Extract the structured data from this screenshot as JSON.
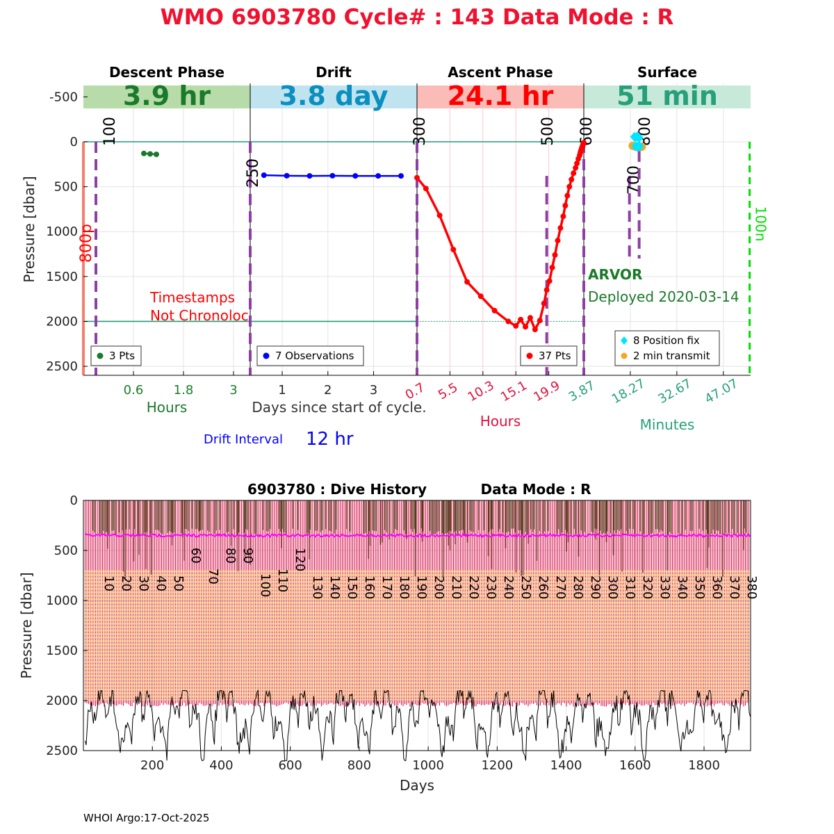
{
  "title": "WMO 6903780   Cycle# : 143   Data Mode : R",
  "footer": "WHOI Argo:17-Oct-2025",
  "colors": {
    "title": "#f0112f",
    "descent": "#1a7a2a",
    "drift": "#0000ff",
    "driftBand": "#0b8fbf",
    "ascent": "#ff0000",
    "surface": "#26a07a",
    "purple": "#8e3fa5",
    "orange": "#f5a623",
    "cyan": "#00e5ff",
    "salmon": "#f08070",
    "green": "#00dd00",
    "pink": "#e0004f",
    "magenta": "#ff00ff"
  },
  "chart_data": [
    {
      "type": "line",
      "name": "cycle-profile",
      "ylabel": "Pressure [dbar]",
      "ylim": [
        -650,
        2600
      ],
      "yticks": [
        -500,
        0,
        500,
        1000,
        1500,
        2000,
        2500
      ],
      "grid": true,
      "surface_line_dbar": 0,
      "park_line_dbar": 2000,
      "phases": [
        {
          "key": "descent",
          "title": "Descent Phase",
          "duration": "3.9 hr",
          "axis_label": "Hours",
          "xlim": [
            -0.6,
            3.4
          ],
          "ticks": [
            0.6,
            1.8,
            3
          ],
          "tick_labels": [
            "0.6",
            "1.8",
            "3"
          ],
          "legend": "3 Pts",
          "series": [
            {
              "x": [
                0.85,
                1.0,
                1.15
              ],
              "y": [
                130,
                135,
                140
              ]
            }
          ],
          "markers": [
            {
              "label": "100",
              "x": -0.3
            }
          ],
          "annotations": [
            "800p",
            "Timestamps",
            "Not Chronoloc"
          ]
        },
        {
          "key": "drift",
          "title": "Drift",
          "duration": "3.8 day",
          "axis_label": "Days since start of cycle.",
          "xlim": [
            0.3,
            3.95
          ],
          "ticks": [
            1,
            2,
            3
          ],
          "tick_labels": [
            "1",
            "2",
            "3"
          ],
          "legend": "7 Observations",
          "series": [
            {
              "x": [
                0.6,
                1.1,
                1.6,
                2.1,
                2.6,
                3.1,
                3.6
              ],
              "y": [
                372,
                378,
                380,
                378,
                380,
                380,
                380
              ]
            }
          ],
          "markers": [
            {
              "label": "250",
              "x": 0.3
            }
          ]
        },
        {
          "key": "ascent",
          "title": "Ascent Phase",
          "duration": "24.1 hr",
          "axis_label": "Hours",
          "xlim": [
            0.7,
            25.0
          ],
          "ticks": [
            0.7,
            5.5,
            10.3,
            15.1,
            19.9
          ],
          "tick_labels": [
            "0.7",
            "5.5",
            "10.3",
            "15.1",
            "19.9"
          ],
          "legend": "37 Pts",
          "series": [
            {
              "x": [
                0.7,
                2.0,
                4.0,
                6.0,
                8.0,
                10.0,
                12.0,
                14.0,
                15.1,
                15.8,
                16.5,
                17.2,
                17.9,
                18.6,
                19.2,
                19.6,
                20.0,
                20.4,
                20.8,
                21.2,
                21.6,
                22.0,
                22.3,
                22.6,
                22.9,
                23.2,
                23.5,
                23.8,
                24.0,
                24.2,
                24.4,
                24.5,
                24.6,
                24.7,
                24.8,
                24.9,
                25.0
              ],
              "y": [
                400,
                520,
                820,
                1200,
                1560,
                1720,
                1880,
                2000,
                2050,
                1980,
                2060,
                1960,
                2090,
                1990,
                1800,
                1650,
                1550,
                1400,
                1260,
                1100,
                960,
                830,
                710,
                600,
                500,
                420,
                350,
                290,
                240,
                190,
                150,
                120,
                95,
                70,
                50,
                30,
                10
              ]
            }
          ],
          "markers": [
            {
              "label": "300",
              "x": 0.7
            },
            {
              "label": "500",
              "x": 19.6
            },
            {
              "label": "600",
              "x": 25.0
            }
          ]
        },
        {
          "key": "surface",
          "title": "Surface",
          "duration": "51 min",
          "axis_label": "Minutes",
          "xlim": [
            3.87,
            55.5
          ],
          "ticks": [
            3.87,
            18.27,
            32.67,
            47.07
          ],
          "tick_labels": [
            "3.87",
            "18.27",
            "32.67",
            "47.07"
          ],
          "legend": [
            "8 Position fix",
            "2 min transmit"
          ],
          "series": [
            {
              "name": "position",
              "x": [
                19.5,
                20.0,
                20.5,
                21.0,
                19.8,
                20.3,
                20.8,
                21.2
              ],
              "y": [
                -55,
                -50,
                -60,
                -45,
                50,
                55,
                45,
                52
              ]
            },
            {
              "name": "transmit",
              "x": [
                19.0,
                20.0,
                20.6,
                21.3,
                21.8
              ],
              "y": [
                45,
                55,
                50,
                60,
                55
              ]
            }
          ],
          "markers": [
            {
              "label": "700",
              "x": 18.0
            },
            {
              "label": "800",
              "x": 21.0
            },
            {
              "label": "100n",
              "x": 55.2
            }
          ],
          "annotations": [
            "ARVOR",
            "Deployed 2020-03-14"
          ]
        }
      ],
      "drift_interval_label": "Drift Interval",
      "drift_interval_value": "12 hr"
    },
    {
      "type": "area",
      "name": "dive-history",
      "title": "6903780 : Dive History",
      "title_mode": "Data Mode : R",
      "xlabel": "Days",
      "ylabel": "Pressure [dbar]",
      "xlim": [
        0,
        1935
      ],
      "ylim": [
        0,
        2500
      ],
      "xticks": [
        200,
        400,
        600,
        800,
        1000,
        1200,
        1400,
        1600,
        1800
      ],
      "yticks": [
        0,
        500,
        1000,
        1500,
        2000,
        2500
      ],
      "park_pressure": 350,
      "profile_pressure": 2000,
      "cycles": 383,
      "cycle_labels": [
        "10",
        "20",
        "30",
        "40",
        "50",
        "60",
        "70",
        "80",
        "90",
        "100",
        "110",
        "120",
        "130",
        "140",
        "150",
        "160",
        "170",
        "180",
        "190",
        "200",
        "210",
        "220",
        "230",
        "240",
        "250",
        "260",
        "270",
        "280",
        "290",
        "300",
        "310",
        "320",
        "330",
        "340",
        "350",
        "360",
        "370",
        "380"
      ]
    }
  ]
}
